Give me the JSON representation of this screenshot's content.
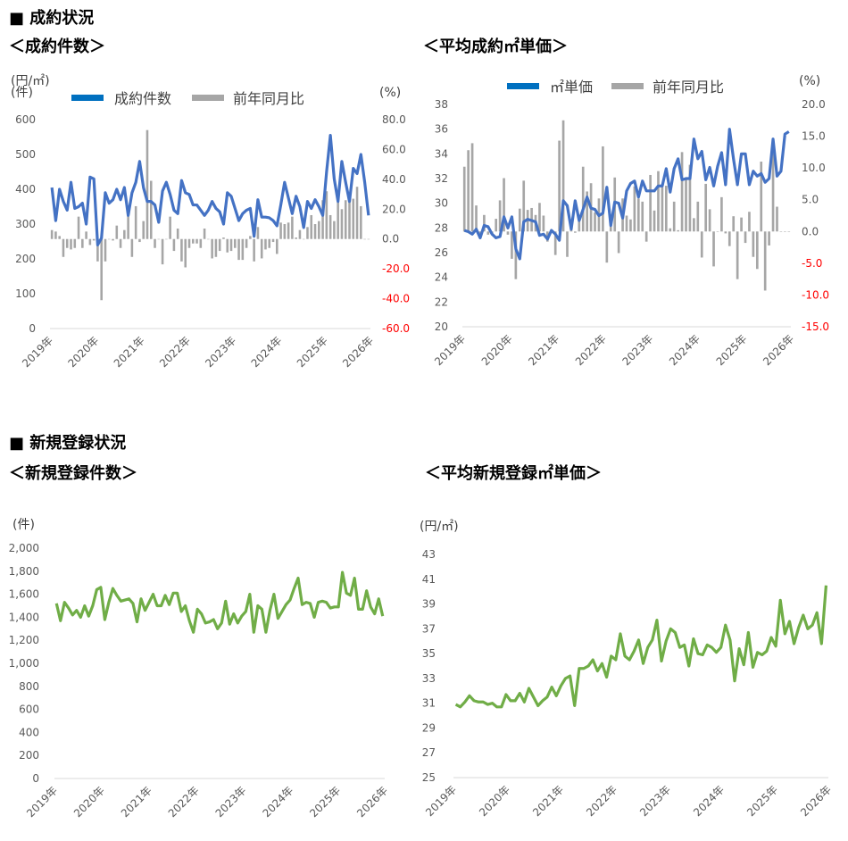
{
  "sections": {
    "contract": {
      "heading": "■ 成約状況"
    },
    "registration": {
      "heading": "■ 新規登録状況"
    }
  },
  "colors": {
    "line_blue": "#4472C4",
    "legend_blue": "#0070C0",
    "bar_gray": "#A6A6A6",
    "line_green": "#70AD47",
    "negative_label": "#FF0000",
    "axis": "#D9D9D9"
  },
  "chart_data": [
    {
      "title": "＜成約件数＞",
      "type": "bar+line",
      "left_unit": "(件)",
      "right_unit": "(%)",
      "ylim": [
        0,
        600
      ],
      "yticks": [
        "600",
        "500",
        "400",
        "300",
        "200",
        "100",
        "0"
      ],
      "y2lim": [
        -60,
        80
      ],
      "y2ticks": [
        "80.0",
        "60.0",
        "40.0",
        "20.0",
        "0.0",
        "-20.0",
        "-40.0",
        "-60.0"
      ],
      "x_tick_labels": [
        "2019年",
        "2020年",
        "2021年",
        "2022年",
        "2023年",
        "2024年",
        "2025年",
        "2026年"
      ],
      "grid": false,
      "legend": "top",
      "series": [
        {
          "name": "成約件数",
          "kind": "line",
          "axis": "left",
          "values": [
            405,
            310,
            400,
            365,
            340,
            420,
            345,
            350,
            360,
            300,
            435,
            430,
            240,
            260,
            390,
            360,
            370,
            400,
            370,
            405,
            325,
            390,
            420,
            480,
            405,
            365,
            365,
            355,
            305,
            395,
            420,
            385,
            340,
            330,
            425,
            390,
            385,
            355,
            355,
            340,
            325,
            340,
            365,
            345,
            335,
            300,
            390,
            380,
            345,
            310,
            330,
            340,
            345,
            265,
            370,
            320,
            320,
            318,
            310,
            295,
            355,
            420,
            375,
            330,
            380,
            350,
            290,
            365,
            345,
            370,
            350,
            325,
            450,
            555,
            430,
            365,
            480,
            420,
            365,
            460,
            445,
            500,
            420,
            325
          ]
        },
        {
          "name": "前年同月比",
          "kind": "bar",
          "axis": "right",
          "values": [
            6,
            5,
            2,
            -12,
            -6,
            -7,
            -6,
            15,
            -6,
            5,
            -4,
            -1,
            -15,
            -41,
            -15,
            0,
            -1,
            9,
            -6,
            6,
            16,
            -12,
            22,
            -2,
            12,
            73,
            39,
            -6,
            0,
            -17,
            0,
            15,
            -8,
            7,
            -15,
            -19,
            -6,
            -3,
            -3,
            -6,
            7,
            0,
            -13,
            -12,
            -8,
            1,
            -9,
            -8,
            -6,
            -14,
            -14,
            -6,
            2,
            -15,
            8,
            -13,
            -7,
            -6,
            -2,
            -10,
            11,
            10,
            11,
            15,
            1,
            6,
            0,
            8,
            16,
            10,
            12,
            26,
            32,
            16,
            12,
            28,
            20,
            26,
            27,
            27,
            35,
            22,
            0,
            0
          ]
        }
      ]
    },
    {
      "title": "＜平均成約㎡単価＞",
      "type": "bar+line",
      "left_unit": "(円/㎡)",
      "right_unit": "(%)",
      "ylim": [
        20,
        38
      ],
      "yticks": [
        "38",
        "36",
        "34",
        "32",
        "30",
        "28",
        "26",
        "24",
        "22",
        "20"
      ],
      "y2lim": [
        -15,
        20
      ],
      "y2ticks": [
        "20.0",
        "15.0",
        "10.0",
        "5.0",
        "0.0",
        "-5.0",
        "-10.0",
        "-15.0"
      ],
      "x_tick_labels": [
        "2019年",
        "2020年",
        "2021年",
        "2022年",
        "2023年",
        "2024年",
        "2025年",
        "2026年"
      ],
      "grid": false,
      "legend": "top",
      "series": [
        {
          "name": "㎡単価",
          "kind": "line",
          "axis": "left",
          "values": [
            27.8,
            27.7,
            27.5,
            27.9,
            27.2,
            28.2,
            28.1,
            27.5,
            27.2,
            27.3,
            28.9,
            28.0,
            28.9,
            26.3,
            25.5,
            28.5,
            28.7,
            28.6,
            28.5,
            27.4,
            27.5,
            27.1,
            27.8,
            27.5,
            27.0,
            30.2,
            29.8,
            27.9,
            30.2,
            28.6,
            29.5,
            30.5,
            29.6,
            29.5,
            29.0,
            29.2,
            31.3,
            28.2,
            30.1,
            30.0,
            28.8,
            31.0,
            31.6,
            31.8,
            30.5,
            31.8,
            31.0,
            31.0,
            31.0,
            31.4,
            31.4,
            32.8,
            30.9,
            32.8,
            33.6,
            31.9,
            32.0,
            32.0,
            35.2,
            33.6,
            34.2,
            31.9,
            32.9,
            31.4,
            33.0,
            34.1,
            31.5,
            36.0,
            33.6,
            31.5,
            34.0,
            34.0,
            31.5,
            32.6,
            32.2,
            32.4,
            31.7,
            32.0,
            35.2,
            32.2,
            32.6,
            35.6,
            35.8
          ]
        },
        {
          "name": "前年同月比",
          "kind": "bar",
          "axis": "right",
          "values": [
            10.2,
            12.8,
            13.9,
            4.1,
            -0.8,
            2.6,
            -0.5,
            -0.6,
            2.0,
            4.9,
            8.4,
            -0.5,
            -4.3,
            -7.5,
            3.6,
            8.0,
            3.4,
            3.7,
            2.6,
            4.5,
            2.5,
            -1.6,
            0,
            -3.7,
            14.3,
            17.5,
            -4.0,
            1.8,
            -0.2,
            1.8,
            10.2,
            6.3,
            7.6,
            3.0,
            5.2,
            13.4,
            -4.9,
            1.8,
            8.5,
            -3.4,
            5.2,
            2.5,
            1.9,
            7.1,
            5.2,
            4.7,
            -1.6,
            8.9,
            3.3,
            9.5,
            7.5,
            7.2,
            0.5,
            4.7,
            0.2,
            12.5,
            8.5,
            10.5,
            2.1,
            4.7,
            -4.1,
            7.5,
            3.5,
            -5.5,
            0,
            5.4,
            -0.3,
            -2.3,
            2.4,
            -7.5,
            2.2,
            -1.8,
            3.1,
            -4.0,
            -5.9,
            11.0,
            -9.3,
            -2.2,
            12.3,
            3.9,
            0,
            0,
            0
          ]
        }
      ]
    },
    {
      "title": "＜新規登録件数＞",
      "type": "line",
      "left_unit": "(件)",
      "ylim": [
        0,
        2000
      ],
      "yticks": [
        "2,000",
        "1,800",
        "1,600",
        "1,400",
        "1,200",
        "1,000",
        "800",
        "600",
        "400",
        "200",
        "0"
      ],
      "x_tick_labels": [
        "2019年",
        "2020年",
        "2021年",
        "2022年",
        "2023年",
        "2024年",
        "2025年",
        "2026年"
      ],
      "grid": false,
      "series": [
        {
          "kind": "line",
          "axis": "left",
          "values": [
            1520,
            1370,
            1530,
            1480,
            1420,
            1460,
            1400,
            1500,
            1410,
            1500,
            1640,
            1660,
            1380,
            1530,
            1650,
            1590,
            1540,
            1550,
            1560,
            1520,
            1360,
            1560,
            1460,
            1530,
            1600,
            1500,
            1500,
            1590,
            1510,
            1610,
            1610,
            1450,
            1500,
            1370,
            1270,
            1470,
            1430,
            1350,
            1360,
            1380,
            1300,
            1350,
            1540,
            1340,
            1430,
            1350,
            1410,
            1450,
            1600,
            1270,
            1500,
            1470,
            1270,
            1460,
            1600,
            1390,
            1450,
            1510,
            1550,
            1650,
            1740,
            1510,
            1530,
            1520,
            1400,
            1530,
            1540,
            1530,
            1480,
            1490,
            1490,
            1790,
            1610,
            1590,
            1740,
            1470,
            1470,
            1630,
            1490,
            1430,
            1560,
            1410
          ]
        }
      ]
    },
    {
      "title": "＜平均新規登録㎡単価＞",
      "type": "line",
      "left_unit": "(円/㎡)",
      "ylim": [
        25,
        43
      ],
      "yticks": [
        "43",
        "41",
        "39",
        "37",
        "35",
        "33",
        "31",
        "29",
        "27",
        "25"
      ],
      "x_tick_labels": [
        "2019年",
        "2020年",
        "2021年",
        "2022年",
        "2023年",
        "2024年",
        "2025年",
        "2026年"
      ],
      "grid": false,
      "series": [
        {
          "kind": "line",
          "axis": "left",
          "values": [
            30.9,
            30.7,
            31.1,
            31.6,
            31.2,
            31.1,
            31.1,
            30.9,
            31.0,
            30.7,
            30.7,
            31.7,
            31.2,
            31.2,
            31.8,
            31.1,
            32.2,
            31.5,
            30.8,
            31.2,
            31.5,
            32.3,
            31.6,
            32.4,
            33.0,
            33.2,
            30.8,
            33.8,
            33.8,
            34.0,
            34.5,
            33.6,
            34.2,
            33.1,
            34.8,
            34.5,
            36.6,
            34.8,
            34.5,
            35.2,
            36.1,
            34.2,
            35.5,
            36.1,
            37.7,
            34.4,
            36.0,
            37.0,
            36.7,
            35.5,
            35.7,
            34.0,
            36.2,
            35.0,
            34.9,
            35.7,
            35.5,
            35.1,
            35.5,
            37.3,
            36.1,
            32.8,
            35.4,
            34.1,
            36.7,
            33.9,
            35.1,
            34.9,
            35.2,
            36.3,
            35.6,
            39.3,
            36.6,
            37.6,
            35.8,
            37.1,
            38.1,
            37.0,
            37.3,
            38.3,
            35.8,
            40.5
          ]
        }
      ]
    }
  ]
}
